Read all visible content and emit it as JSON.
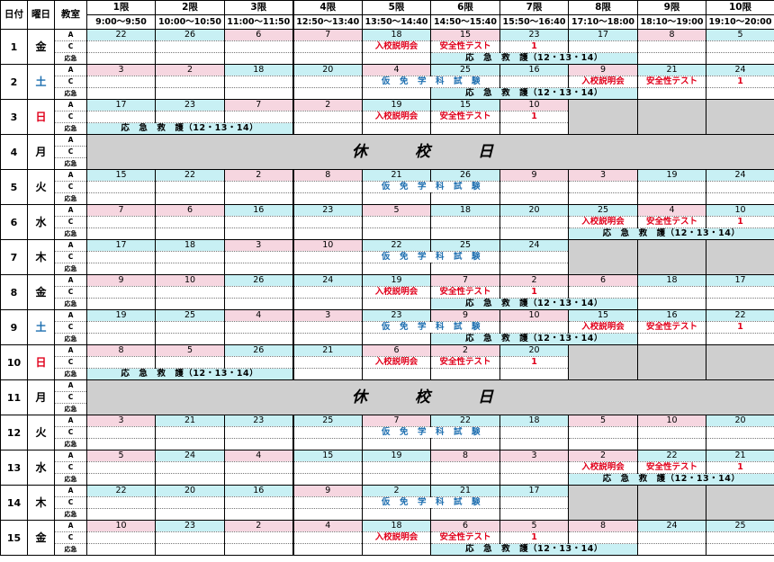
{
  "header": {
    "date_label": "日付",
    "weekday_label": "曜日",
    "room_label": "教室",
    "periods": [
      {
        "name": "1限",
        "time": "9:00〜9:50"
      },
      {
        "name": "2限",
        "time": "10:00〜10:50"
      },
      {
        "name": "3限",
        "time": "11:00〜11:50"
      },
      {
        "name": "4限",
        "time": "12:50〜13:40"
      },
      {
        "name": "5限",
        "time": "13:50〜14:40"
      },
      {
        "name": "6限",
        "time": "14:50〜15:40"
      },
      {
        "name": "7限",
        "time": "15:50〜16:40"
      },
      {
        "name": "8限",
        "time": "17:10〜18:00"
      },
      {
        "name": "9限",
        "time": "18:10〜19:00"
      },
      {
        "name": "10限",
        "time": "19:10〜20:00"
      }
    ]
  },
  "labels": {
    "a": "A",
    "c": "C",
    "emergency": "応急",
    "intro": "入校説明会",
    "safety": "安全性テスト",
    "one": "1",
    "kari": "仮　免　学　科　試　験",
    "aid": "応　急　救　護（12・13・14）",
    "holiday": "休　校　日"
  },
  "days": [
    {
      "date": "1",
      "wd": "金",
      "wdc": "",
      "holiday": false,
      "a": [
        [
          "22",
          "c"
        ],
        [
          "26",
          "c"
        ],
        [
          "6",
          "p"
        ],
        [
          "7",
          "p"
        ],
        [
          "18",
          "c"
        ],
        [
          "15",
          "p"
        ],
        [
          "23",
          "c"
        ],
        [
          "17",
          "c"
        ],
        [
          "8",
          "p"
        ],
        [
          "5",
          "c"
        ]
      ],
      "cev": {
        "intro": 5,
        "safety": 6,
        "one": 7
      },
      "aid": [
        6,
        8
      ]
    },
    {
      "date": "2",
      "wd": "土",
      "wdc": "blue",
      "holiday": false,
      "a": [
        [
          "3",
          "p"
        ],
        [
          "2",
          "p"
        ],
        [
          "18",
          "c"
        ],
        [
          "20",
          "c"
        ],
        [
          "4",
          "p"
        ],
        [
          "25",
          "c"
        ],
        [
          "16",
          "c"
        ],
        [
          "9",
          "p"
        ],
        [
          "21",
          "c"
        ],
        [
          "24",
          "c"
        ]
      ],
      "kari": [
        5,
        6
      ],
      "cev": {
        "intro": 8,
        "safety": 9,
        "one": 10
      },
      "aid": [
        6,
        8
      ]
    },
    {
      "date": "3",
      "wd": "日",
      "wdc": "red",
      "holiday": false,
      "a": [
        [
          "17",
          "c"
        ],
        [
          "23",
          "c"
        ],
        [
          "7",
          "p"
        ],
        [
          "2",
          "p"
        ],
        [
          "19",
          "c"
        ],
        [
          "15",
          "c"
        ],
        [
          "10",
          "p"
        ],
        [
          "",
          "g"
        ],
        [
          "",
          "g"
        ],
        [
          "",
          "g"
        ]
      ],
      "cev": {
        "intro": 5,
        "safety": 6,
        "one": 7
      },
      "aid": [
        1,
        3
      ]
    },
    {
      "date": "4",
      "wd": "月",
      "wdc": "",
      "holiday": true
    },
    {
      "date": "5",
      "wd": "火",
      "wdc": "",
      "holiday": false,
      "a": [
        [
          "15",
          "c"
        ],
        [
          "22",
          "c"
        ],
        [
          "2",
          "p"
        ],
        [
          "8",
          "p"
        ],
        [
          "21",
          "c"
        ],
        [
          "26",
          "c"
        ],
        [
          "9",
          "p"
        ],
        [
          "3",
          "p"
        ],
        [
          "19",
          "c"
        ],
        [
          "24",
          "c"
        ]
      ],
      "kari": [
        5,
        6
      ]
    },
    {
      "date": "6",
      "wd": "水",
      "wdc": "",
      "holiday": false,
      "a": [
        [
          "7",
          "p"
        ],
        [
          "6",
          "p"
        ],
        [
          "16",
          "c"
        ],
        [
          "23",
          "c"
        ],
        [
          "5",
          "p"
        ],
        [
          "18",
          "c"
        ],
        [
          "20",
          "c"
        ],
        [
          "25",
          "c"
        ],
        [
          "4",
          "p"
        ],
        [
          "10",
          "c"
        ]
      ],
      "cev": {
        "intro": 8,
        "safety": 9,
        "one": 10
      },
      "aid": [
        8,
        10
      ]
    },
    {
      "date": "7",
      "wd": "木",
      "wdc": "",
      "holiday": false,
      "a": [
        [
          "17",
          "c"
        ],
        [
          "18",
          "c"
        ],
        [
          "3",
          "p"
        ],
        [
          "10",
          "p"
        ],
        [
          "22",
          "c"
        ],
        [
          "25",
          "c"
        ],
        [
          "24",
          "c"
        ],
        [
          "",
          "g"
        ],
        [
          "",
          "g"
        ],
        [
          "",
          "g"
        ]
      ],
      "kari": [
        5,
        6
      ]
    },
    {
      "date": "8",
      "wd": "金",
      "wdc": "",
      "holiday": false,
      "a": [
        [
          "9",
          "p"
        ],
        [
          "10",
          "p"
        ],
        [
          "26",
          "c"
        ],
        [
          "24",
          "c"
        ],
        [
          "19",
          "c"
        ],
        [
          "7",
          "p"
        ],
        [
          "2",
          "p"
        ],
        [
          "6",
          "p"
        ],
        [
          "18",
          "c"
        ],
        [
          "17",
          "c"
        ]
      ],
      "cev": {
        "intro": 5,
        "safety": 6,
        "one": 7
      },
      "aid": [
        6,
        8
      ]
    },
    {
      "date": "9",
      "wd": "土",
      "wdc": "blue",
      "holiday": false,
      "a": [
        [
          "19",
          "c"
        ],
        [
          "25",
          "c"
        ],
        [
          "4",
          "p"
        ],
        [
          "3",
          "p"
        ],
        [
          "23",
          "c"
        ],
        [
          "9",
          "p"
        ],
        [
          "10",
          "p"
        ],
        [
          "15",
          "c"
        ],
        [
          "16",
          "c"
        ],
        [
          "22",
          "c"
        ]
      ],
      "kari": [
        5,
        6
      ],
      "cev": {
        "intro": 8,
        "safety": 9,
        "one": 10
      },
      "aid": [
        6,
        8
      ]
    },
    {
      "date": "10",
      "wd": "日",
      "wdc": "red",
      "holiday": false,
      "a": [
        [
          "8",
          "p"
        ],
        [
          "5",
          "p"
        ],
        [
          "26",
          "c"
        ],
        [
          "21",
          "c"
        ],
        [
          "6",
          "p"
        ],
        [
          "2",
          "p"
        ],
        [
          "20",
          "c"
        ],
        [
          "",
          "g"
        ],
        [
          "",
          "g"
        ],
        [
          "",
          "g"
        ]
      ],
      "cev": {
        "intro": 5,
        "safety": 6,
        "one": 7
      },
      "aid": [
        1,
        3
      ]
    },
    {
      "date": "11",
      "wd": "月",
      "wdc": "",
      "holiday": true
    },
    {
      "date": "12",
      "wd": "火",
      "wdc": "",
      "holiday": false,
      "a": [
        [
          "3",
          "p"
        ],
        [
          "21",
          "c"
        ],
        [
          "23",
          "c"
        ],
        [
          "25",
          "c"
        ],
        [
          "7",
          "p"
        ],
        [
          "22",
          "c"
        ],
        [
          "18",
          "c"
        ],
        [
          "5",
          "p"
        ],
        [
          "10",
          "p"
        ],
        [
          "20",
          "c"
        ]
      ],
      "kari": [
        5,
        6
      ]
    },
    {
      "date": "13",
      "wd": "水",
      "wdc": "",
      "holiday": false,
      "a": [
        [
          "5",
          "p"
        ],
        [
          "24",
          "c"
        ],
        [
          "4",
          "p"
        ],
        [
          "15",
          "c"
        ],
        [
          "19",
          "c"
        ],
        [
          "8",
          "p"
        ],
        [
          "3",
          "p"
        ],
        [
          "2",
          "p"
        ],
        [
          "22",
          "c"
        ],
        [
          "21",
          "c"
        ]
      ],
      "cev": {
        "intro": 8,
        "safety": 9,
        "one": 10
      },
      "aid": [
        8,
        10
      ]
    },
    {
      "date": "14",
      "wd": "木",
      "wdc": "",
      "holiday": false,
      "a": [
        [
          "22",
          "c"
        ],
        [
          "20",
          "c"
        ],
        [
          "16",
          "c"
        ],
        [
          "9",
          "p"
        ],
        [
          "2",
          "c"
        ],
        [
          "21",
          "c"
        ],
        [
          "17",
          "c"
        ],
        [
          "",
          "g"
        ],
        [
          "",
          "g"
        ],
        [
          "",
          "g"
        ]
      ],
      "kari": [
        5,
        6
      ]
    },
    {
      "date": "15",
      "wd": "金",
      "wdc": "",
      "holiday": false,
      "a": [
        [
          "10",
          "p"
        ],
        [
          "23",
          "c"
        ],
        [
          "2",
          "p"
        ],
        [
          "4",
          "p"
        ],
        [
          "18",
          "c"
        ],
        [
          "6",
          "p"
        ],
        [
          "5",
          "p"
        ],
        [
          "8",
          "p"
        ],
        [
          "24",
          "c"
        ],
        [
          "25",
          "c"
        ]
      ],
      "cev": {
        "intro": 5,
        "safety": 6,
        "one": 7
      },
      "aid": [
        6,
        8
      ]
    }
  ]
}
